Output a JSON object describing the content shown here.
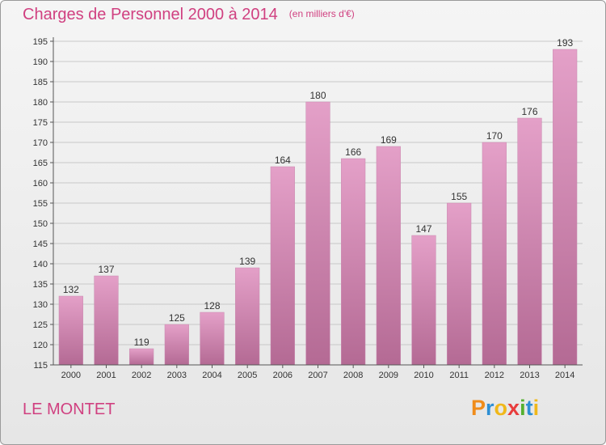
{
  "header": {
    "title": "Charges de Personnel 2000 à 2014",
    "subtitle": "(en milliers d'€)"
  },
  "footer": {
    "commune": "LE MONTET",
    "brand": {
      "letters": [
        "P",
        "r",
        "o",
        "x",
        "i",
        "t",
        "i"
      ],
      "colors": [
        "#f08c1a",
        "#2e8fd4",
        "#f0b81a",
        "#e83c3c",
        "#55b030",
        "#2e8fd4",
        "#f0b81a"
      ]
    }
  },
  "chart_data": {
    "type": "bar",
    "categories": [
      "2000",
      "2001",
      "2002",
      "2003",
      "2004",
      "2005",
      "2006",
      "2007",
      "2008",
      "2009",
      "2010",
      "2011",
      "2012",
      "2013",
      "2014"
    ],
    "values": [
      132,
      137,
      119,
      125,
      128,
      139,
      164,
      180,
      166,
      169,
      147,
      155,
      170,
      176,
      193
    ],
    "ylim": [
      115,
      195
    ],
    "yticks": [
      115,
      120,
      125,
      130,
      135,
      140,
      145,
      150,
      155,
      160,
      165,
      170,
      175,
      180,
      185,
      190,
      195
    ],
    "grid": true,
    "bar_color": "#e4a0c8",
    "bar_color_dark": "#b46a94"
  }
}
